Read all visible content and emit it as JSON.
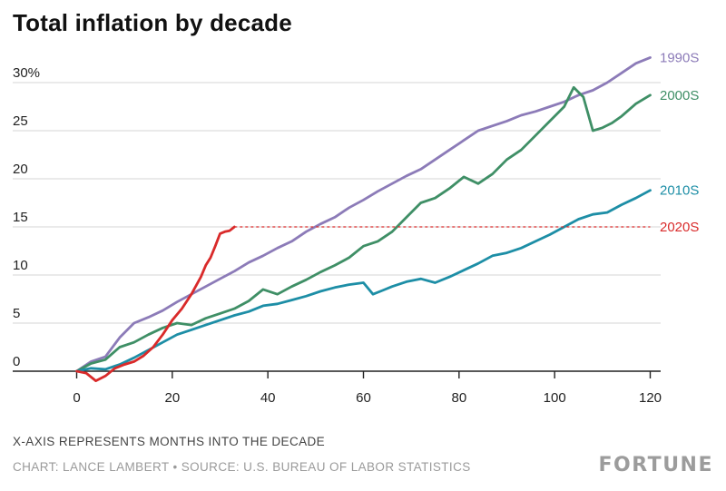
{
  "title": "Total inflation by decade",
  "footnote": "X-AXIS REPRESENTS MONTHS INTO THE DECADE",
  "credit": "CHART: LANCE LAMBERT • SOURCE: U.S. BUREAU OF LABOR STATISTICS",
  "brand": "FORTUNE",
  "colors": {
    "1990s": "#8c7bb8",
    "2000s": "#3f8f66",
    "2010s": "#1d8ea6",
    "2020s": "#d92a2a",
    "grid": "#d4d4d4",
    "axis": "#222222"
  },
  "chart_data": {
    "type": "line",
    "title": "Total inflation by decade",
    "xlabel": "X-AXIS REPRESENTS MONTHS INTO THE DECADE",
    "ylabel": "",
    "xlim": [
      -12,
      122
    ],
    "ylim": [
      0,
      30
    ],
    "x_ticks": [
      0,
      20,
      40,
      60,
      80,
      100,
      120
    ],
    "y_ticks": [
      0,
      5,
      10,
      15,
      20,
      25,
      30
    ],
    "y_tick_labels": [
      "0",
      "5",
      "10",
      "15",
      "20",
      "25",
      "30%"
    ],
    "grid": true,
    "series": [
      {
        "name": "1990S",
        "color_key": "1990s",
        "x": [
          0,
          3,
          6,
          9,
          12,
          15,
          18,
          21,
          24,
          27,
          30,
          33,
          36,
          39,
          42,
          45,
          48,
          51,
          54,
          57,
          60,
          63,
          66,
          69,
          72,
          75,
          78,
          81,
          84,
          87,
          90,
          93,
          96,
          99,
          102,
          105,
          108,
          111,
          114,
          117,
          120
        ],
        "y": [
          0,
          1.0,
          1.5,
          3.5,
          5.0,
          5.6,
          6.3,
          7.2,
          8.0,
          8.8,
          9.6,
          10.4,
          11.3,
          12.0,
          12.8,
          13.5,
          14.5,
          15.3,
          16.0,
          17.0,
          17.8,
          18.7,
          19.5,
          20.3,
          21.0,
          22.0,
          23.0,
          24.0,
          25.0,
          25.5,
          26.0,
          26.6,
          27.0,
          27.5,
          28.0,
          28.7,
          29.2,
          30.0,
          31.0,
          32.0,
          32.6
        ],
        "end_label": "1990S",
        "end_value": 32.6
      },
      {
        "name": "2000S",
        "color_key": "2000s",
        "x": [
          0,
          3,
          6,
          9,
          12,
          15,
          18,
          21,
          24,
          27,
          30,
          33,
          36,
          39,
          42,
          45,
          48,
          51,
          54,
          57,
          60,
          63,
          66,
          69,
          72,
          75,
          78,
          81,
          84,
          87,
          90,
          93,
          96,
          99,
          102,
          104,
          106,
          108,
          110,
          112,
          114,
          117,
          120
        ],
        "y": [
          0,
          0.8,
          1.2,
          2.5,
          3.0,
          3.8,
          4.5,
          5.0,
          4.8,
          5.5,
          6.0,
          6.5,
          7.3,
          8.5,
          8.0,
          8.8,
          9.5,
          10.3,
          11.0,
          11.8,
          13.0,
          13.5,
          14.5,
          16.0,
          17.5,
          18.0,
          19.0,
          20.2,
          19.5,
          20.5,
          22.0,
          23.0,
          24.5,
          26.0,
          27.5,
          29.5,
          28.5,
          25.0,
          25.3,
          25.8,
          26.5,
          27.8,
          28.7
        ],
        "end_label": "2000S",
        "end_value": 28.7
      },
      {
        "name": "2010S",
        "color_key": "2010s",
        "x": [
          0,
          3,
          6,
          9,
          12,
          15,
          18,
          21,
          24,
          27,
          30,
          33,
          36,
          39,
          42,
          45,
          48,
          51,
          54,
          57,
          60,
          62,
          64,
          66,
          69,
          72,
          75,
          78,
          81,
          84,
          87,
          90,
          93,
          96,
          99,
          102,
          105,
          108,
          111,
          114,
          117,
          120
        ],
        "y": [
          0,
          0.3,
          0.2,
          0.7,
          1.4,
          2.2,
          3.0,
          3.8,
          4.3,
          4.8,
          5.3,
          5.8,
          6.2,
          6.8,
          7.0,
          7.4,
          7.8,
          8.3,
          8.7,
          9.0,
          9.2,
          8.0,
          8.4,
          8.8,
          9.3,
          9.6,
          9.2,
          9.8,
          10.5,
          11.2,
          12.0,
          12.3,
          12.8,
          13.5,
          14.2,
          15.0,
          15.8,
          16.3,
          16.5,
          17.3,
          18.0,
          18.8
        ],
        "end_label": "2010S",
        "end_value": 18.8
      },
      {
        "name": "2020S",
        "color_key": "2020s",
        "x": [
          0,
          2,
          4,
          6,
          8,
          10,
          12,
          14,
          16,
          18,
          20,
          22,
          24,
          26,
          27,
          28,
          29,
          30,
          31,
          32,
          33
        ],
        "y": [
          0,
          -0.2,
          -1.0,
          -0.5,
          0.3,
          0.7,
          1.0,
          1.6,
          2.5,
          3.8,
          5.3,
          6.5,
          8.0,
          9.8,
          11.0,
          11.8,
          13.0,
          14.3,
          14.5,
          14.6,
          15.0
        ],
        "end_label": "2020S",
        "end_value": 15.0,
        "dashed_extension_to_x": 120
      }
    ]
  }
}
